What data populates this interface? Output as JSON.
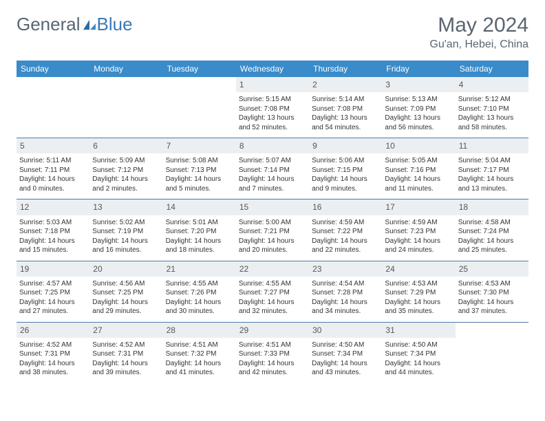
{
  "brand": {
    "part1": "General",
    "part2": "Blue"
  },
  "title": "May 2024",
  "location": "Gu'an, Hebei, China",
  "colors": {
    "header_bg": "#3a8bc9",
    "border": "#4a7aa8",
    "daynum_bg": "#eceff2",
    "text": "#333333",
    "muted": "#5a6570"
  },
  "weekdays": [
    "Sunday",
    "Monday",
    "Tuesday",
    "Wednesday",
    "Thursday",
    "Friday",
    "Saturday"
  ],
  "weeks": [
    [
      {
        "n": "",
        "sr": "",
        "ss": "",
        "dl": ""
      },
      {
        "n": "",
        "sr": "",
        "ss": "",
        "dl": ""
      },
      {
        "n": "",
        "sr": "",
        "ss": "",
        "dl": ""
      },
      {
        "n": "1",
        "sr": "Sunrise: 5:15 AM",
        "ss": "Sunset: 7:08 PM",
        "dl": "Daylight: 13 hours and 52 minutes."
      },
      {
        "n": "2",
        "sr": "Sunrise: 5:14 AM",
        "ss": "Sunset: 7:08 PM",
        "dl": "Daylight: 13 hours and 54 minutes."
      },
      {
        "n": "3",
        "sr": "Sunrise: 5:13 AM",
        "ss": "Sunset: 7:09 PM",
        "dl": "Daylight: 13 hours and 56 minutes."
      },
      {
        "n": "4",
        "sr": "Sunrise: 5:12 AM",
        "ss": "Sunset: 7:10 PM",
        "dl": "Daylight: 13 hours and 58 minutes."
      }
    ],
    [
      {
        "n": "5",
        "sr": "Sunrise: 5:11 AM",
        "ss": "Sunset: 7:11 PM",
        "dl": "Daylight: 14 hours and 0 minutes."
      },
      {
        "n": "6",
        "sr": "Sunrise: 5:09 AM",
        "ss": "Sunset: 7:12 PM",
        "dl": "Daylight: 14 hours and 2 minutes."
      },
      {
        "n": "7",
        "sr": "Sunrise: 5:08 AM",
        "ss": "Sunset: 7:13 PM",
        "dl": "Daylight: 14 hours and 5 minutes."
      },
      {
        "n": "8",
        "sr": "Sunrise: 5:07 AM",
        "ss": "Sunset: 7:14 PM",
        "dl": "Daylight: 14 hours and 7 minutes."
      },
      {
        "n": "9",
        "sr": "Sunrise: 5:06 AM",
        "ss": "Sunset: 7:15 PM",
        "dl": "Daylight: 14 hours and 9 minutes."
      },
      {
        "n": "10",
        "sr": "Sunrise: 5:05 AM",
        "ss": "Sunset: 7:16 PM",
        "dl": "Daylight: 14 hours and 11 minutes."
      },
      {
        "n": "11",
        "sr": "Sunrise: 5:04 AM",
        "ss": "Sunset: 7:17 PM",
        "dl": "Daylight: 14 hours and 13 minutes."
      }
    ],
    [
      {
        "n": "12",
        "sr": "Sunrise: 5:03 AM",
        "ss": "Sunset: 7:18 PM",
        "dl": "Daylight: 14 hours and 15 minutes."
      },
      {
        "n": "13",
        "sr": "Sunrise: 5:02 AM",
        "ss": "Sunset: 7:19 PM",
        "dl": "Daylight: 14 hours and 16 minutes."
      },
      {
        "n": "14",
        "sr": "Sunrise: 5:01 AM",
        "ss": "Sunset: 7:20 PM",
        "dl": "Daylight: 14 hours and 18 minutes."
      },
      {
        "n": "15",
        "sr": "Sunrise: 5:00 AM",
        "ss": "Sunset: 7:21 PM",
        "dl": "Daylight: 14 hours and 20 minutes."
      },
      {
        "n": "16",
        "sr": "Sunrise: 4:59 AM",
        "ss": "Sunset: 7:22 PM",
        "dl": "Daylight: 14 hours and 22 minutes."
      },
      {
        "n": "17",
        "sr": "Sunrise: 4:59 AM",
        "ss": "Sunset: 7:23 PM",
        "dl": "Daylight: 14 hours and 24 minutes."
      },
      {
        "n": "18",
        "sr": "Sunrise: 4:58 AM",
        "ss": "Sunset: 7:24 PM",
        "dl": "Daylight: 14 hours and 25 minutes."
      }
    ],
    [
      {
        "n": "19",
        "sr": "Sunrise: 4:57 AM",
        "ss": "Sunset: 7:25 PM",
        "dl": "Daylight: 14 hours and 27 minutes."
      },
      {
        "n": "20",
        "sr": "Sunrise: 4:56 AM",
        "ss": "Sunset: 7:25 PM",
        "dl": "Daylight: 14 hours and 29 minutes."
      },
      {
        "n": "21",
        "sr": "Sunrise: 4:55 AM",
        "ss": "Sunset: 7:26 PM",
        "dl": "Daylight: 14 hours and 30 minutes."
      },
      {
        "n": "22",
        "sr": "Sunrise: 4:55 AM",
        "ss": "Sunset: 7:27 PM",
        "dl": "Daylight: 14 hours and 32 minutes."
      },
      {
        "n": "23",
        "sr": "Sunrise: 4:54 AM",
        "ss": "Sunset: 7:28 PM",
        "dl": "Daylight: 14 hours and 34 minutes."
      },
      {
        "n": "24",
        "sr": "Sunrise: 4:53 AM",
        "ss": "Sunset: 7:29 PM",
        "dl": "Daylight: 14 hours and 35 minutes."
      },
      {
        "n": "25",
        "sr": "Sunrise: 4:53 AM",
        "ss": "Sunset: 7:30 PM",
        "dl": "Daylight: 14 hours and 37 minutes."
      }
    ],
    [
      {
        "n": "26",
        "sr": "Sunrise: 4:52 AM",
        "ss": "Sunset: 7:31 PM",
        "dl": "Daylight: 14 hours and 38 minutes."
      },
      {
        "n": "27",
        "sr": "Sunrise: 4:52 AM",
        "ss": "Sunset: 7:31 PM",
        "dl": "Daylight: 14 hours and 39 minutes."
      },
      {
        "n": "28",
        "sr": "Sunrise: 4:51 AM",
        "ss": "Sunset: 7:32 PM",
        "dl": "Daylight: 14 hours and 41 minutes."
      },
      {
        "n": "29",
        "sr": "Sunrise: 4:51 AM",
        "ss": "Sunset: 7:33 PM",
        "dl": "Daylight: 14 hours and 42 minutes."
      },
      {
        "n": "30",
        "sr": "Sunrise: 4:50 AM",
        "ss": "Sunset: 7:34 PM",
        "dl": "Daylight: 14 hours and 43 minutes."
      },
      {
        "n": "31",
        "sr": "Sunrise: 4:50 AM",
        "ss": "Sunset: 7:34 PM",
        "dl": "Daylight: 14 hours and 44 minutes."
      },
      {
        "n": "",
        "sr": "",
        "ss": "",
        "dl": ""
      }
    ]
  ]
}
